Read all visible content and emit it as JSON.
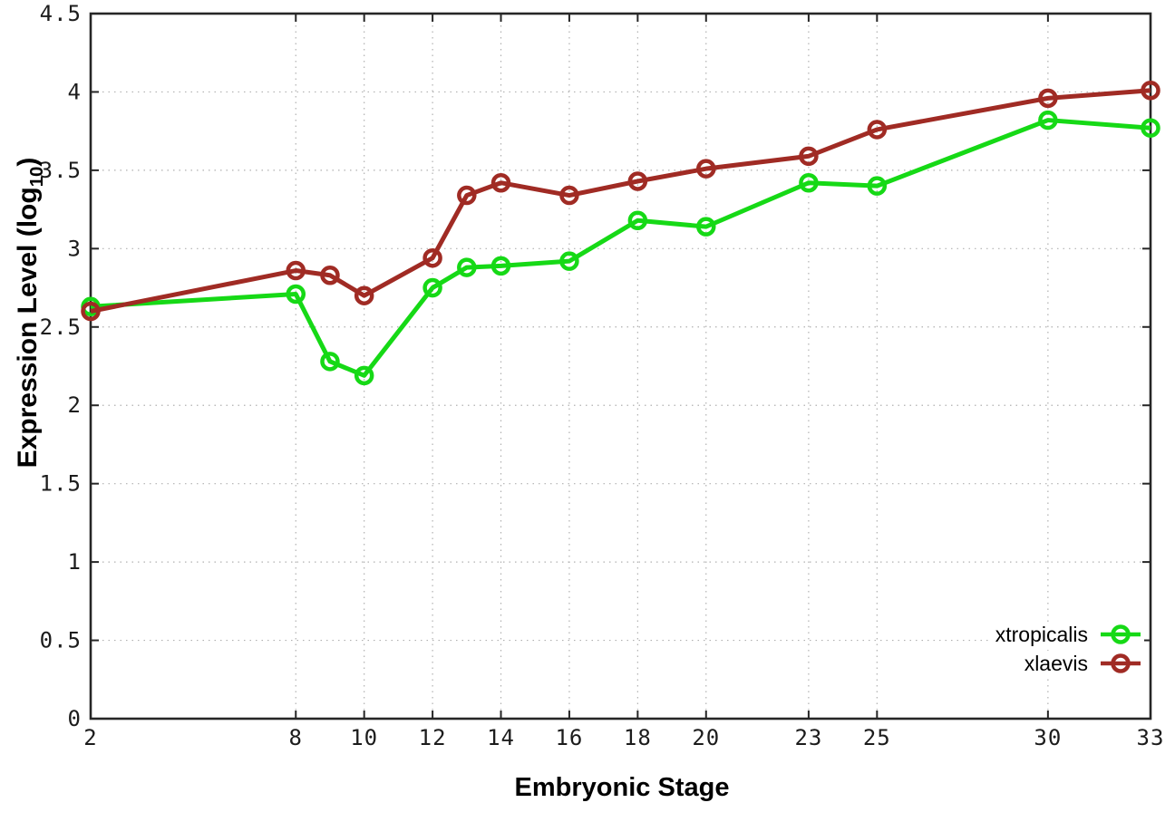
{
  "chart_data": {
    "type": "line",
    "xlabel": "Embryonic Stage",
    "ylabel": "Expression Level (log10)",
    "ylabel_parts": {
      "main": "Expression Level (log",
      "sub": "10",
      "close": ")"
    },
    "x": [
      2,
      8,
      9,
      10,
      12,
      13,
      14,
      16,
      18,
      20,
      23,
      25,
      30,
      33
    ],
    "series": [
      {
        "name": "xtropicalis",
        "color": "#16d916",
        "values": [
          2.63,
          2.71,
          2.28,
          2.19,
          2.75,
          2.88,
          2.89,
          2.92,
          3.18,
          3.14,
          3.42,
          3.4,
          3.82,
          3.77
        ]
      },
      {
        "name": "xlaevis",
        "color": "#a02b24",
        "values": [
          2.6,
          2.86,
          2.83,
          2.7,
          2.94,
          3.34,
          3.42,
          3.34,
          3.43,
          3.51,
          3.59,
          3.76,
          3.96,
          4.01
        ]
      }
    ],
    "xlim": [
      2,
      33
    ],
    "ylim": [
      0,
      4.5
    ],
    "xticks": [
      2,
      8,
      10,
      12,
      14,
      16,
      18,
      20,
      23,
      25,
      30,
      33
    ],
    "yticks": [
      0,
      0.5,
      1,
      1.5,
      2,
      2.5,
      3,
      3.5,
      4,
      4.5
    ],
    "grid": true,
    "grid_style": "dotted",
    "legend_position": "bottom-right",
    "marker": "open-circle",
    "colors": {
      "axis": "#262626",
      "grid": "#b0b0b0",
      "background": "#ffffff"
    }
  }
}
